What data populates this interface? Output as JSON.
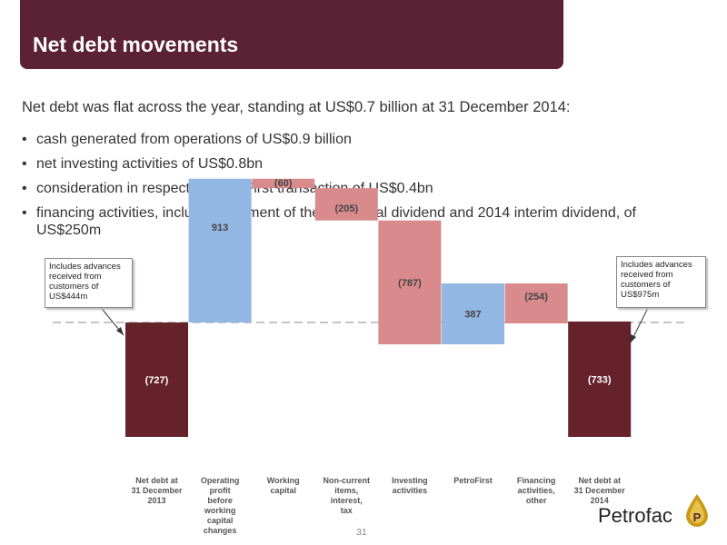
{
  "slide": {
    "title": "Net debt movements",
    "intro": "Net debt was flat across the year, standing at US$0.7 billion at 31 December 2014:",
    "bullets": [
      "cash generated from operations of US$0.9 billion",
      "net investing activities of US$0.8bn",
      "consideration in respect of PetroFirst transaction of US$0.4bn",
      "financing activities, including payment of the 2013 final dividend and 2014 interim dividend, of US$250m"
    ],
    "bullet_char": "•",
    "callouts": [
      {
        "text": "Includes advances received from customers of US$444m"
      },
      {
        "text": "Includes advances received from customers of US$975m"
      }
    ],
    "page_number": "31",
    "logo": "Petrofac"
  },
  "colors": {
    "title_bar": "#5b2134",
    "total": "#66222a",
    "increase": "#93b7e3",
    "decrease": "#d98a8d",
    "dashed_line": "#888888"
  },
  "chart_data": {
    "type": "bar",
    "subtype": "waterfall",
    "categories": [
      "Net debt at 31 December 2013",
      "Operating profit before working capital changes",
      "Working capital",
      "Non-current items, interest, tax",
      "Investing activities",
      "PetroFirst",
      "Financing activities, other",
      "Net debt at 31 December 2014"
    ],
    "values": [
      -727,
      913,
      -60,
      -205,
      -787,
      387,
      -254,
      -733
    ],
    "labels": [
      "(727)",
      "913",
      "(60)",
      "(205)",
      "(787)",
      "387",
      "(254)",
      "(733)"
    ],
    "kinds": [
      "total",
      "increase",
      "decrease",
      "decrease",
      "decrease",
      "increase",
      "decrease",
      "total"
    ],
    "reference_line": -727,
    "title": "",
    "xlabel": "",
    "ylabel": ""
  }
}
